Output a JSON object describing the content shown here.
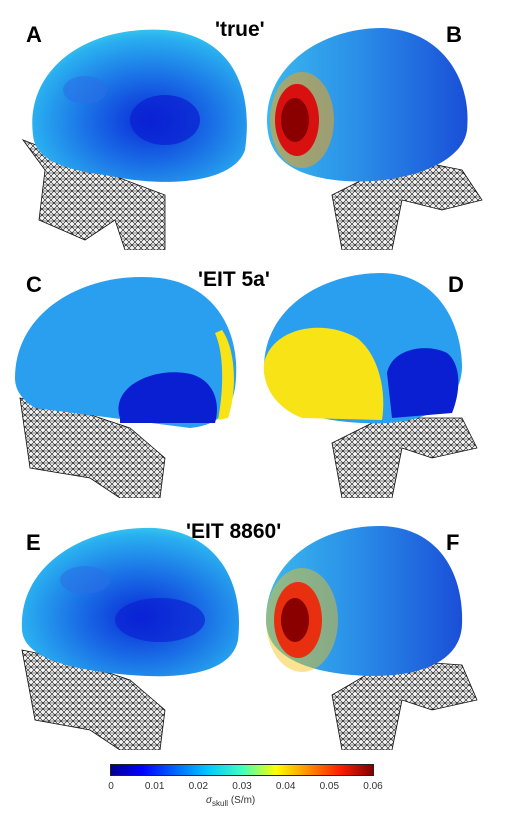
{
  "rows": [
    {
      "title": "'true'",
      "left": {
        "label": "A",
        "variant": "true-left"
      },
      "right": {
        "label": "B",
        "variant": "true-right"
      }
    },
    {
      "title": "'EIT 5a'",
      "left": {
        "label": "C",
        "variant": "five-left"
      },
      "right": {
        "label": "D",
        "variant": "five-right"
      }
    },
    {
      "title": "'EIT 8860'",
      "left": {
        "label": "E",
        "variant": "eit-left"
      },
      "right": {
        "label": "F",
        "variant": "eit-right"
      }
    }
  ],
  "colorbar": {
    "ticks": [
      "0",
      "0.01",
      "0.02",
      "0.03",
      "0.04",
      "0.05",
      "0.06"
    ],
    "range": [
      0,
      0.06
    ],
    "label_symbol": "σ",
    "label_sub": "skull",
    "label_unit": "(S/m)",
    "colormap": "jet"
  },
  "colors": {
    "dark_blue": "#0a1ed2",
    "mid_blue": "#1a6fe6",
    "light_blue": "#2a9ff0",
    "cyan": "#30d0e0",
    "yellow": "#f8e416",
    "red": "#d81010",
    "dark_red": "#8a0000",
    "mesh": "#111111"
  }
}
